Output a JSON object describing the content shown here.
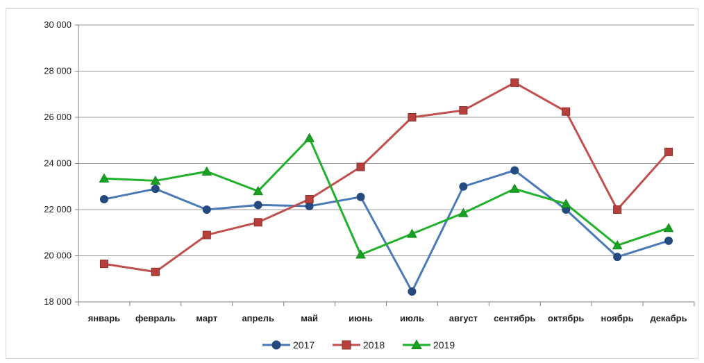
{
  "chart_data": {
    "type": "line",
    "title": "",
    "xlabel": "",
    "ylabel": "",
    "categories": [
      "январь",
      "февраль",
      "март",
      "апрель",
      "май",
      "июнь",
      "июль",
      "август",
      "сентябрь",
      "октябрь",
      "ноябрь",
      "декабрь"
    ],
    "ylim": [
      18000,
      30000
    ],
    "yticks": [
      18000,
      20000,
      22000,
      24000,
      26000,
      28000,
      30000
    ],
    "ytick_labels": [
      "18 000",
      "20 000",
      "22 000",
      "24 000",
      "26 000",
      "28 000",
      "30 000"
    ],
    "grid": true,
    "legend": "bottom",
    "series": [
      {
        "name": "2017",
        "color": "#4a7ab5",
        "marker": "circle",
        "values": [
          22450,
          22900,
          22000,
          22200,
          22150,
          22550,
          18450,
          23000,
          23700,
          22000,
          19950,
          20650
        ]
      },
      {
        "name": "2018",
        "color": "#c0504d",
        "marker": "square",
        "values": [
          19650,
          19300,
          20900,
          21450,
          22450,
          23850,
          26000,
          26300,
          27500,
          26250,
          22000,
          24500
        ]
      },
      {
        "name": "2019",
        "color": "#1fb12a",
        "marker": "triangle",
        "values": [
          23350,
          23250,
          23650,
          22800,
          25100,
          20050,
          20950,
          21850,
          22900,
          22250,
          20450,
          21200
        ]
      }
    ]
  }
}
